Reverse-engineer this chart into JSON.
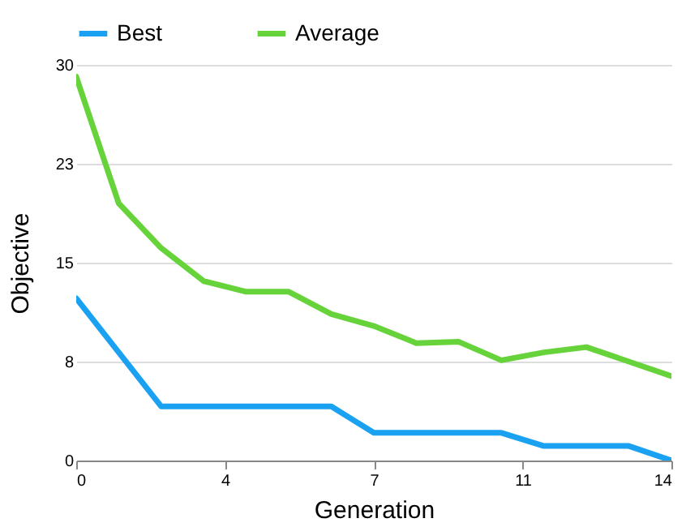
{
  "chart_data": {
    "type": "line",
    "xlabel": "Generation",
    "ylabel": "Objective",
    "x": [
      0,
      1,
      2,
      3,
      4,
      5,
      6,
      7,
      8,
      9,
      10,
      11,
      12,
      13,
      14
    ],
    "series": [
      {
        "name": "Best",
        "color": "#1ba1f2",
        "values": [
          12.3,
          8.2,
          4.1,
          4.1,
          4.1,
          4.1,
          4.1,
          2.1,
          2.1,
          2.1,
          2.1,
          1.1,
          1.1,
          1.1,
          0
        ]
      },
      {
        "name": "Average",
        "color": "#66d33a",
        "values": [
          29.1,
          19.5,
          16.1,
          13.6,
          12.8,
          12.8,
          11.1,
          10.2,
          8.9,
          9.0,
          7.6,
          8.2,
          8.6,
          7.5,
          6.4
        ]
      }
    ],
    "xlim": [
      0,
      14
    ],
    "xticks": [
      0,
      {
        "value": 3.5,
        "label": "4"
      },
      7,
      {
        "value": 10.5,
        "label": "11"
      },
      14
    ],
    "ylim": [
      0,
      30
    ],
    "yticks": [
      0,
      {
        "value": 7.5,
        "label": "8"
      },
      15,
      {
        "value": 22.5,
        "label": "23"
      },
      30
    ],
    "grid": "y",
    "legend": "top",
    "marker": "none",
    "line_style": "solid"
  }
}
